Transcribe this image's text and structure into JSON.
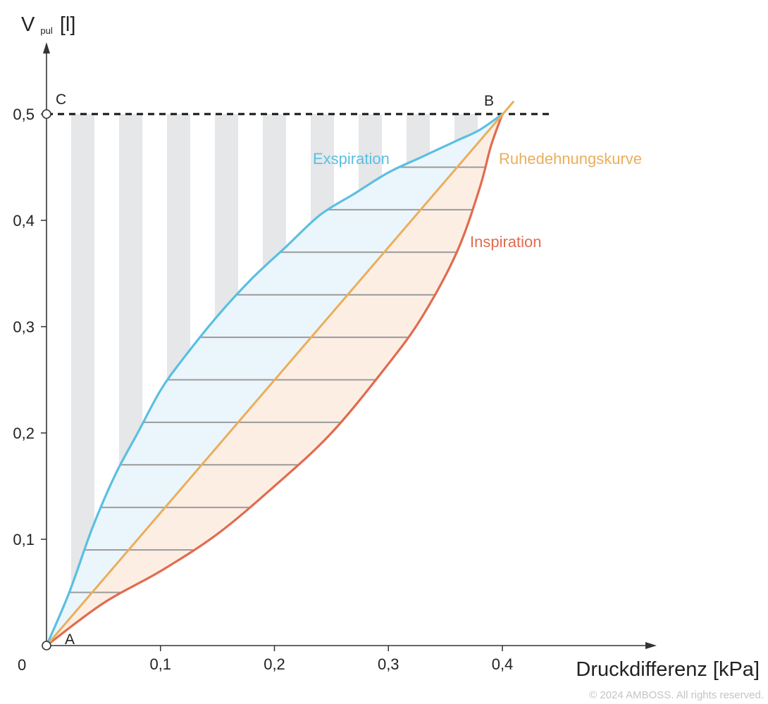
{
  "chart_data": {
    "type": "line",
    "title": "",
    "xlabel": "Druckdifferenz [kPa]",
    "ylabel_main": "V",
    "ylabel_sub": "pul",
    "ylabel_unit": "[l]",
    "xlim": [
      0,
      0.45
    ],
    "ylim": [
      0,
      0.55
    ],
    "x_ticks": [
      0.1,
      0.2,
      0.3,
      0.4
    ],
    "x_tick_labels": [
      "0,1",
      "0,2",
      "0,3",
      "0,4"
    ],
    "y_ticks": [
      0.1,
      0.2,
      0.3,
      0.4,
      0.5
    ],
    "y_tick_labels": [
      "0,1",
      "0,2",
      "0,3",
      "0,4",
      "0,5"
    ],
    "origin_label": "0",
    "grid": false,
    "series": [
      {
        "name": "Exspiration",
        "color": "#5bbfe2",
        "x": [
          0,
          0.02,
          0.04,
          0.06,
          0.08,
          0.1,
          0.12,
          0.15,
          0.18,
          0.21,
          0.24,
          0.27,
          0.3,
          0.33,
          0.36,
          0.38,
          0.4
        ],
        "y": [
          0,
          0.05,
          0.11,
          0.16,
          0.2,
          0.24,
          0.27,
          0.31,
          0.345,
          0.375,
          0.405,
          0.425,
          0.445,
          0.46,
          0.475,
          0.485,
          0.5
        ]
      },
      {
        "name": "Inspiration",
        "color": "#e06c4f",
        "x": [
          0,
          0.05,
          0.1,
          0.15,
          0.2,
          0.25,
          0.3,
          0.33,
          0.36,
          0.38,
          0.39,
          0.4
        ],
        "y": [
          0,
          0.04,
          0.07,
          0.105,
          0.15,
          0.2,
          0.265,
          0.31,
          0.37,
          0.43,
          0.47,
          0.5
        ]
      },
      {
        "name": "Ruhedehnungskurve",
        "color": "#eaae5c",
        "x": [
          0,
          0.41
        ],
        "y": [
          0,
          0.512
        ]
      }
    ],
    "reference_line": {
      "y": 0.5,
      "style": "dashed",
      "color": "#111111",
      "x_range": [
        0,
        0.44
      ]
    },
    "points": [
      {
        "label": "A",
        "x": 0,
        "y": 0
      },
      {
        "label": "B",
        "x": 0.4,
        "y": 0.5
      },
      {
        "label": "C",
        "x": 0,
        "y": 0.5
      }
    ],
    "hatch_levels": [
      0.05,
      0.09,
      0.13,
      0.17,
      0.21,
      0.25,
      0.29,
      0.33,
      0.37,
      0.41,
      0.45
    ],
    "stripe_count": 9,
    "colors": {
      "stripe": "#e6e7e8",
      "exp_fill": "#e7f4fb",
      "insp_fill": "#fdeee4",
      "hatch": "#9a9a9a",
      "axis": "#333333"
    }
  },
  "footer": {
    "copyright": "© 2024 AMBOSS. All rights reserved."
  }
}
